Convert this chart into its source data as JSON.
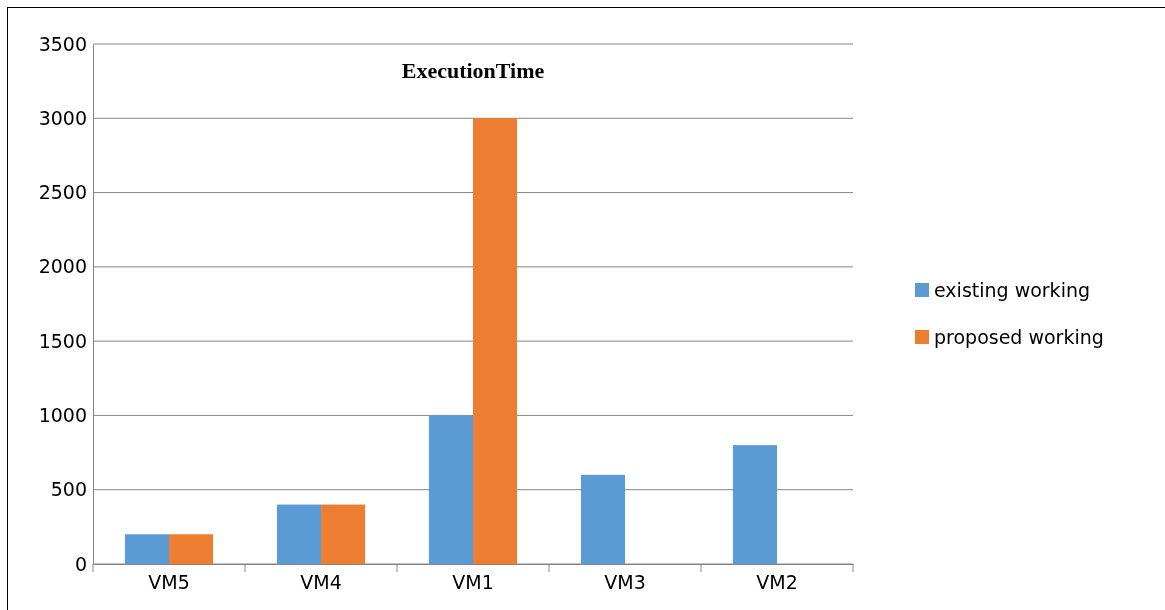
{
  "chart_data": {
    "type": "bar",
    "title": "ExecutionTime",
    "categories": [
      "VM5",
      "VM4",
      "VM1",
      "VM3",
      "VM2"
    ],
    "series": [
      {
        "name": "existing working",
        "color": "#5b9bd5",
        "values": [
          200,
          400,
          1000,
          600,
          800
        ]
      },
      {
        "name": "proposed working",
        "color": "#ed7d31",
        "values": [
          200,
          400,
          3000,
          0,
          0
        ]
      }
    ],
    "ylim": [
      0,
      3500
    ],
    "yticks": [
      0,
      500,
      1000,
      1500,
      2000,
      2500,
      3000,
      3500
    ],
    "grid": "y",
    "legend": "right"
  }
}
